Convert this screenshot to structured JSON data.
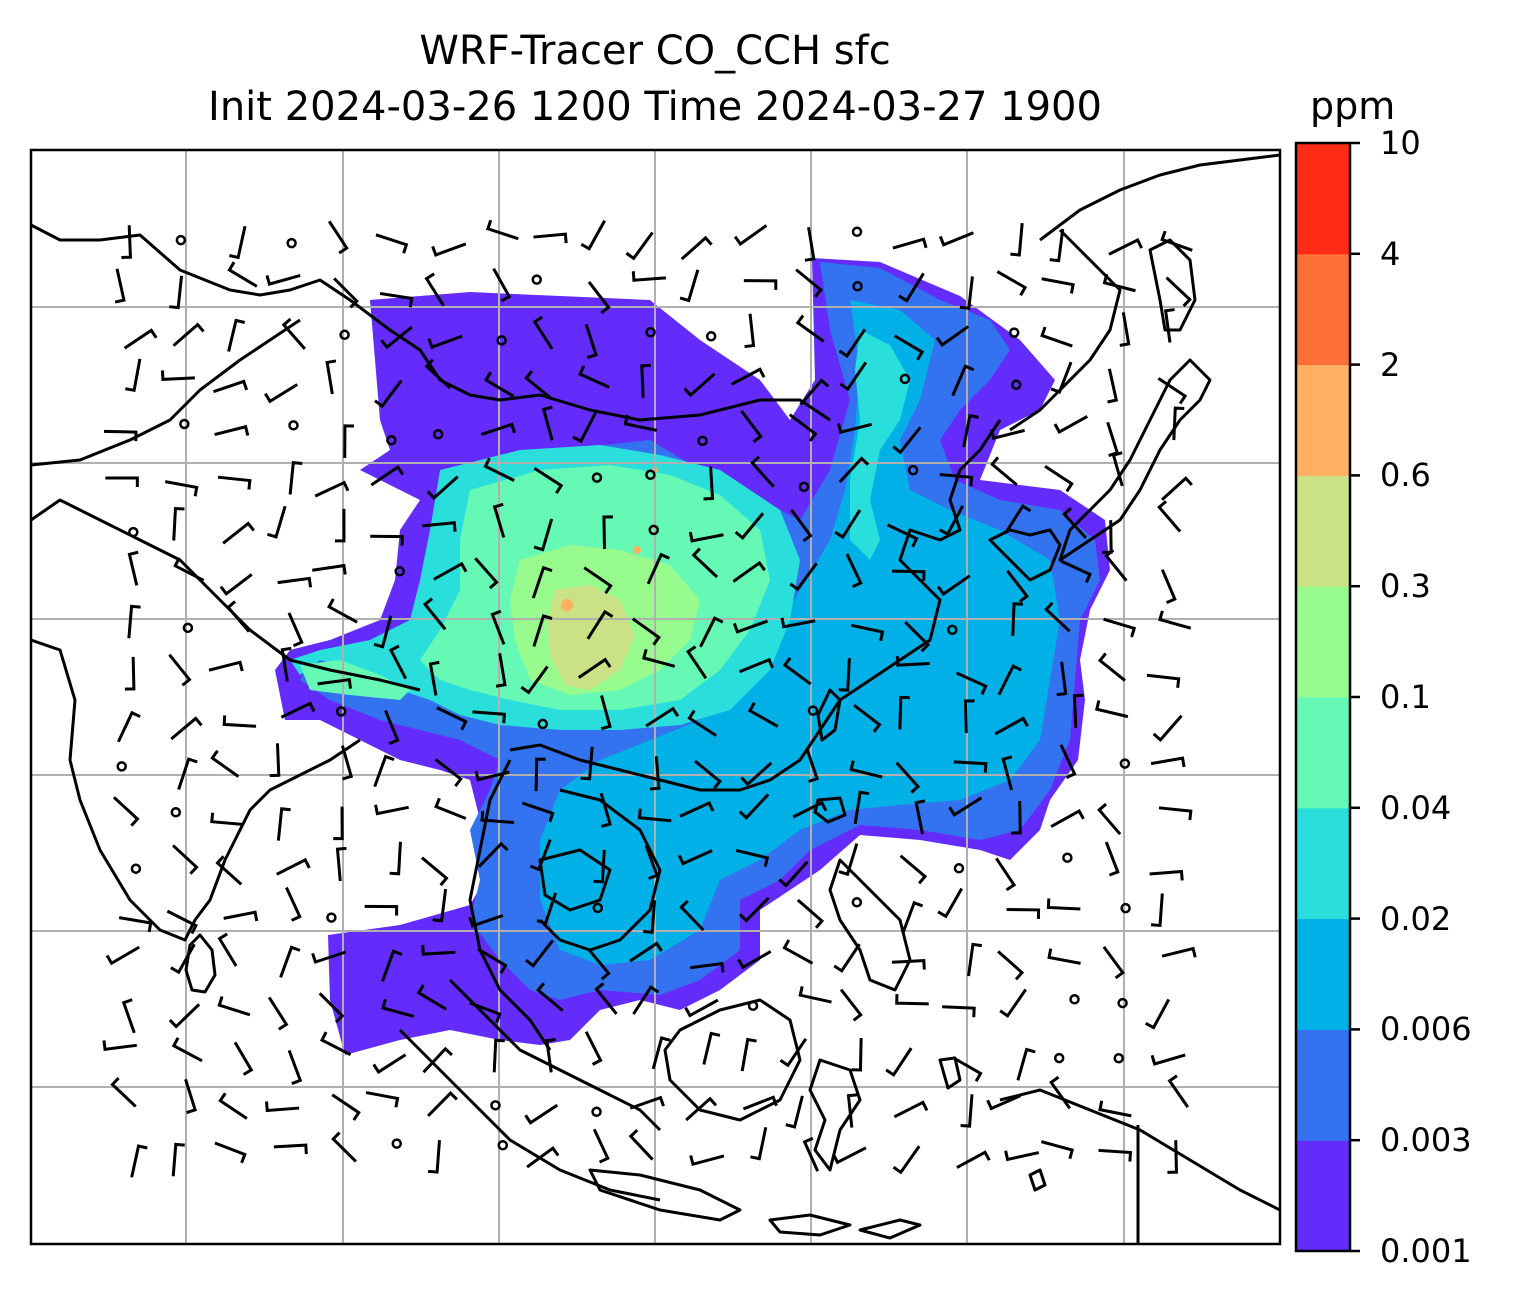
{
  "title": {
    "line1": "WRF-Tracer CO_CCH sfc",
    "line2": "Init 2024-03-26 1200 Time 2024-03-27 1900"
  },
  "colorbar": {
    "units": "ppm",
    "levels": [
      "0.001",
      "0.003",
      "0.006",
      "0.02",
      "0.04",
      "0.1",
      "0.3",
      "0.6",
      "2",
      "4",
      "10"
    ],
    "colors": [
      "#632cfa",
      "#3373f0",
      "#00b0e6",
      "#2adedb",
      "#66f9b6",
      "#98fb8e",
      "#cbe186",
      "#ffb061",
      "#ff7038",
      "#ff2b14"
    ]
  },
  "map": {
    "frame_color": "#000000",
    "gridline_color": "#b0b0b0",
    "coastline_color": "#000000",
    "wind_barb_color": "#000000"
  }
}
